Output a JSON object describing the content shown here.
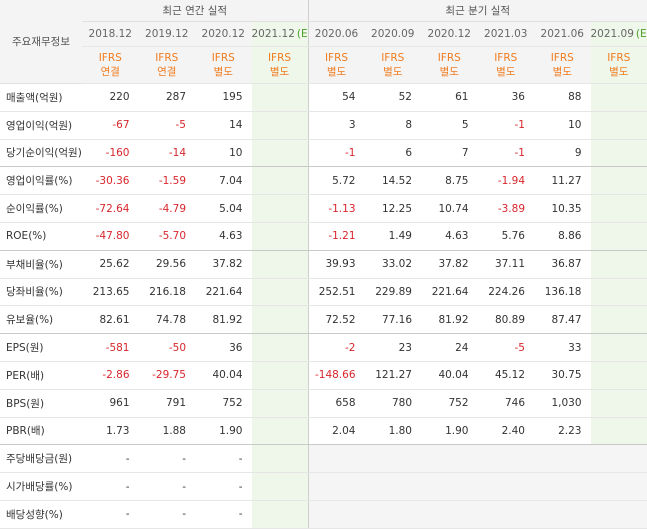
{
  "table": {
    "corner": "주요재무정보",
    "groups": [
      {
        "title": "최근 연간 실적",
        "columns": [
          {
            "period": "2018.12",
            "standard": "IFRS",
            "basis": "연결"
          },
          {
            "period": "2019.12",
            "standard": "IFRS",
            "basis": "연결"
          },
          {
            "period": "2020.12",
            "standard": "IFRS",
            "basis": "별도"
          },
          {
            "period": "2021.12",
            "estimate": "(E)",
            "standard": "IFRS",
            "basis": "별도"
          }
        ]
      },
      {
        "title": "최근 분기 실적",
        "columns": [
          {
            "period": "2020.06",
            "standard": "IFRS",
            "basis": "별도"
          },
          {
            "period": "2020.09",
            "standard": "IFRS",
            "basis": "별도"
          },
          {
            "period": "2020.12",
            "standard": "IFRS",
            "basis": "별도"
          },
          {
            "period": "2021.03",
            "standard": "IFRS",
            "basis": "별도"
          },
          {
            "period": "2021.06",
            "standard": "IFRS",
            "basis": "별도"
          },
          {
            "period": "2021.09",
            "estimate": "(E)",
            "standard": "IFRS",
            "basis": "별도"
          }
        ]
      }
    ],
    "rows": [
      {
        "label": "매출액(억원)",
        "values": [
          "220",
          "287",
          "195",
          null,
          "54",
          "52",
          "61",
          "36",
          "88",
          null
        ]
      },
      {
        "label": "영업이익(억원)",
        "values": [
          "-67",
          "-5",
          "14",
          null,
          "3",
          "8",
          "5",
          "-1",
          "10",
          null
        ]
      },
      {
        "label": "당기순이익(억원)",
        "values": [
          "-160",
          "-14",
          "10",
          null,
          "-1",
          "6",
          "7",
          "-1",
          "9",
          null
        ]
      },
      {
        "label": "영업이익률(%)",
        "values": [
          "-30.36",
          "-1.59",
          "7.04",
          null,
          "5.72",
          "14.52",
          "8.75",
          "-1.94",
          "11.27",
          null
        ]
      },
      {
        "label": "순이익률(%)",
        "values": [
          "-72.64",
          "-4.79",
          "5.04",
          null,
          "-1.13",
          "12.25",
          "10.74",
          "-3.89",
          "10.35",
          null
        ]
      },
      {
        "label": "ROE(%)",
        "values": [
          "-47.80",
          "-5.70",
          "4.63",
          null,
          "-1.21",
          "1.49",
          "4.63",
          "5.76",
          "8.86",
          null
        ]
      },
      {
        "label": "부채비율(%)",
        "values": [
          "25.62",
          "29.56",
          "37.82",
          null,
          "39.93",
          "33.02",
          "37.82",
          "37.11",
          "36.87",
          null
        ]
      },
      {
        "label": "당좌비율(%)",
        "values": [
          "213.65",
          "216.18",
          "221.64",
          null,
          "252.51",
          "229.89",
          "221.64",
          "224.26",
          "136.18",
          null
        ]
      },
      {
        "label": "유보율(%)",
        "values": [
          "82.61",
          "74.78",
          "81.92",
          null,
          "72.52",
          "77.16",
          "81.92",
          "80.89",
          "87.47",
          null
        ]
      },
      {
        "label": "EPS(원)",
        "values": [
          "-581",
          "-50",
          "36",
          null,
          "-2",
          "23",
          "24",
          "-5",
          "33",
          null
        ]
      },
      {
        "label": "PER(배)",
        "values": [
          "-2.86",
          "-29.75",
          "40.04",
          null,
          "-148.66",
          "121.27",
          "40.04",
          "45.12",
          "30.75",
          null
        ]
      },
      {
        "label": "BPS(원)",
        "values": [
          "961",
          "791",
          "752",
          null,
          "658",
          "780",
          "752",
          "746",
          "1,030",
          null
        ]
      },
      {
        "label": "PBR(배)",
        "values": [
          "1.73",
          "1.88",
          "1.90",
          null,
          "2.04",
          "1.80",
          "1.90",
          "2.40",
          "2.23",
          null
        ]
      },
      {
        "label": "주당배당금(원)",
        "values": [
          "-",
          "-",
          "-",
          null,
          null,
          null,
          null,
          null,
          null,
          null
        ]
      },
      {
        "label": "시가배당률(%)",
        "values": [
          "-",
          "-",
          "-",
          null,
          null,
          null,
          null,
          null,
          null,
          null
        ]
      },
      {
        "label": "배당성향(%)",
        "values": [
          "-",
          "-",
          "-",
          null,
          null,
          null,
          null,
          null,
          null,
          null
        ]
      }
    ]
  }
}
